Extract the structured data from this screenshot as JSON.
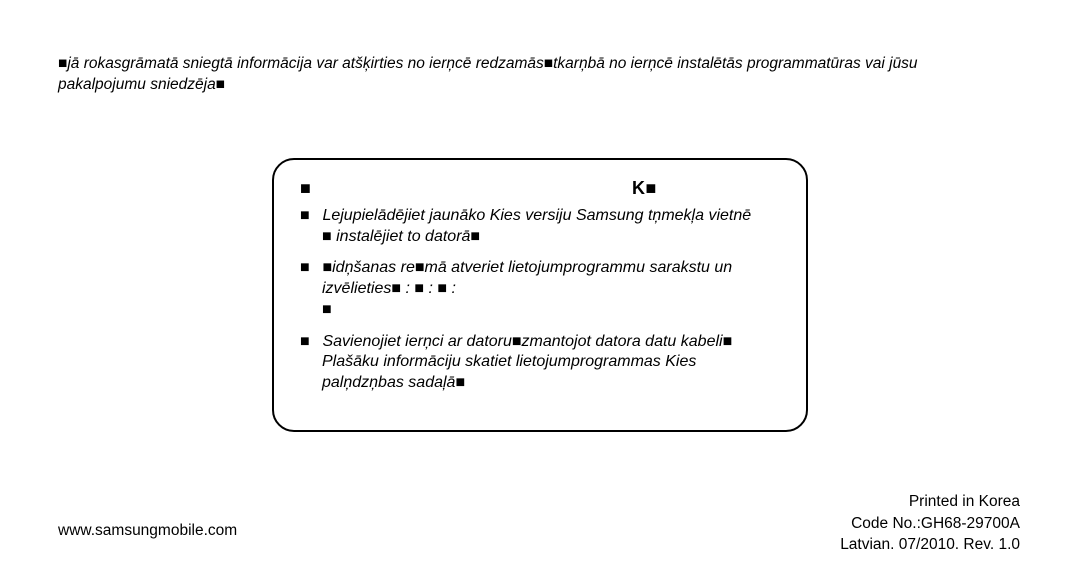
{
  "top_note": {
    "line1": "■jā rokasgrāmatā sniegtā informācija var atšķirties no ierņcē redzamās■tkarņbā no ierņcē instalētās programmatūras vai jūsu",
    "line2": "pakalpojumu sniedzēja■"
  },
  "box": {
    "title_left": "■",
    "title_k": "K■",
    "step1_lead": "■",
    "step1_line1": "Lejupielādējiet jaunāko Kies versiju Samsung tņmekļa vietnē",
    "step1_line2": "■ instalējiet to datorā■",
    "step2_lead": "■",
    "step2_line1": "■idņšanas re■mā atveriet lietojumprogrammu sarakstu un",
    "step2_line2_pre": "izvēlieties■",
    "step2_line2_colons": "        :    ■             :   ■                            :",
    "step2_line3": "■",
    "step3_lead": "■",
    "step3_line1": "Savienojiet ierņci ar datoru■zmantojot datora datu kabeli■",
    "step3_line2": "Plašāku informāciju skatiet lietojumprogrammas Kies",
    "step3_line3": "palņdzņbas sadaļā■"
  },
  "footer": {
    "url": "www.samsungmobile.com",
    "printed": "Printed in Korea",
    "code": "Code No.:GH68-29700A",
    "rev": "Latvian. 07/2010. Rev. 1.0"
  },
  "colors": {
    "text": "#000000",
    "background": "#ffffff",
    "border": "#000000"
  },
  "fonts": {
    "body_size_pt": 12,
    "italic": true
  }
}
